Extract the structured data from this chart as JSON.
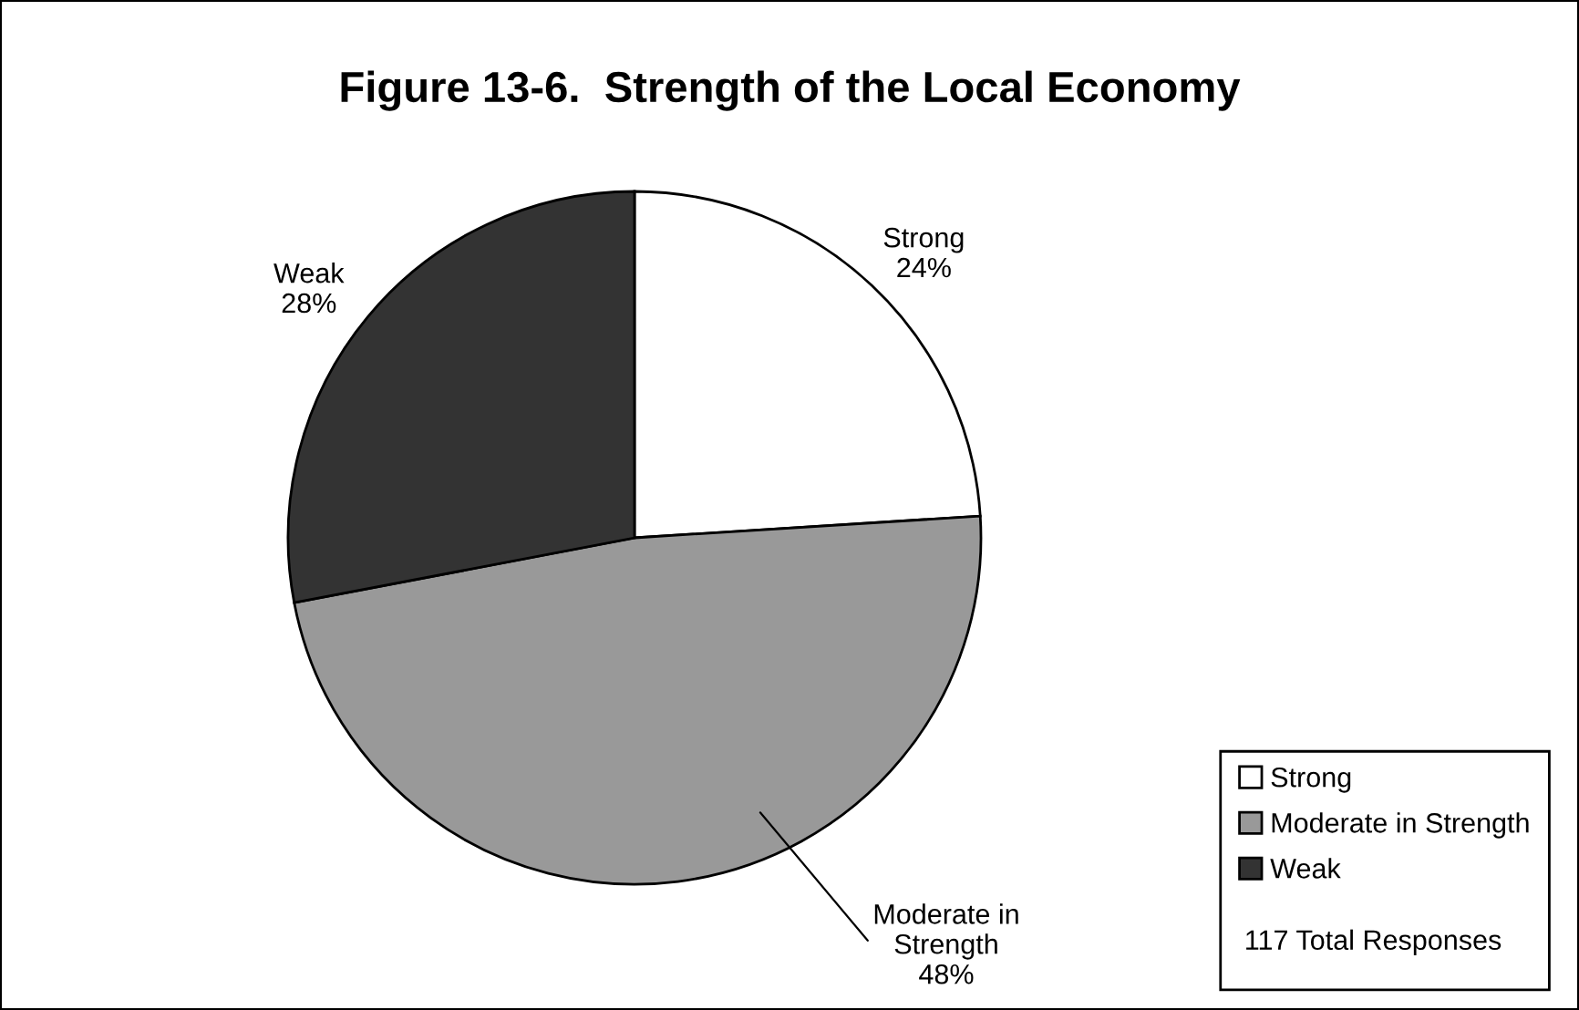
{
  "chart_data": {
    "type": "pie",
    "title": "Figure 13-6.  Strength of the Local Economy",
    "categories": [
      "Strong",
      "Moderate in Strength",
      "Weak"
    ],
    "values": [
      24,
      48,
      28
    ],
    "colors": [
      "#ffffff",
      "#999999",
      "#333333"
    ],
    "value_labels": [
      "24%",
      "48%",
      "28%"
    ],
    "legend": "bottom right",
    "annotations": [
      "117 Total Responses"
    ]
  }
}
